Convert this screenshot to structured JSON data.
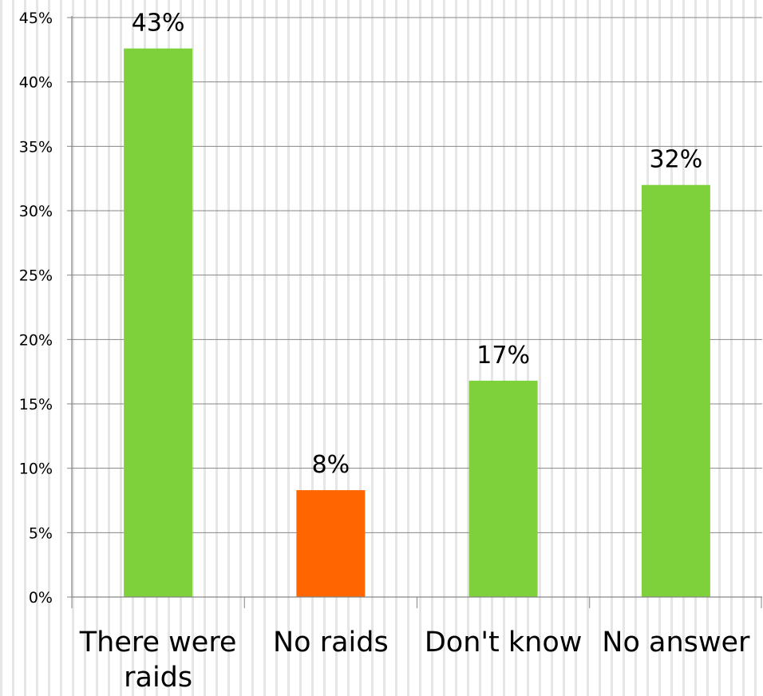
{
  "chart_data": {
    "type": "bar",
    "categories": [
      [
        "There were",
        "raids"
      ],
      [
        "No raids"
      ],
      [
        "Don't know"
      ],
      [
        "No answer"
      ]
    ],
    "values": [
      42.6,
      8.3,
      16.8,
      32.0
    ],
    "data_labels": [
      "43%",
      "8%",
      "17%",
      "32%"
    ],
    "bar_colors": [
      "#7fd13b",
      "#ff6600",
      "#7fd13b",
      "#7fd13b"
    ],
    "yticks": [
      {
        "value": 0,
        "label": "0%"
      },
      {
        "value": 5,
        "label": "5%"
      },
      {
        "value": 10,
        "label": "10%"
      },
      {
        "value": 15,
        "label": "15%"
      },
      {
        "value": 20,
        "label": "20%"
      },
      {
        "value": 25,
        "label": "25%"
      },
      {
        "value": 30,
        "label": "30%"
      },
      {
        "value": 35,
        "label": "35%"
      },
      {
        "value": 40,
        "label": "40%"
      },
      {
        "value": 45,
        "label": "45%"
      }
    ],
    "ylim": [
      0,
      45
    ],
    "grid": true,
    "title": "",
    "xlabel": "",
    "ylabel": ""
  }
}
